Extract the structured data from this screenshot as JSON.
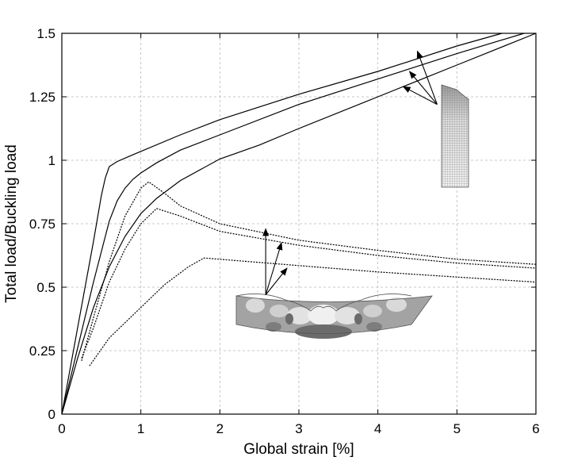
{
  "chart_data": {
    "type": "line",
    "xlabel": "Global strain [%]",
    "ylabel": "Total load/Buckling load",
    "xlim": [
      0,
      6
    ],
    "ylim": [
      0,
      1.5
    ],
    "xticks": [
      0,
      1,
      2,
      3,
      4,
      5,
      6
    ],
    "yticks": [
      0,
      0.25,
      0.5,
      0.75,
      1,
      1.25,
      1.5
    ],
    "ytick_labels": [
      "0",
      "0.25",
      "0.5",
      "0.75",
      "1",
      "1.25",
      "1.5"
    ],
    "grid": true,
    "series": [
      {
        "style": "solid",
        "x": [
          0,
          0.2,
          0.4,
          0.5,
          0.55,
          0.6,
          0.7,
          0.85,
          1.0,
          1.5,
          2.0,
          3.0,
          4.0,
          5.0,
          5.57
        ],
        "y": [
          0,
          0.34,
          0.68,
          0.86,
          0.93,
          0.975,
          0.995,
          1.015,
          1.035,
          1.1,
          1.16,
          1.26,
          1.35,
          1.45,
          1.5
        ]
      },
      {
        "style": "solid",
        "x": [
          0,
          0.2,
          0.4,
          0.6,
          0.7,
          0.8,
          0.9,
          1.0,
          1.2,
          1.5,
          2.0,
          3.0,
          4.0,
          5.0,
          5.85
        ],
        "y": [
          0,
          0.26,
          0.52,
          0.76,
          0.84,
          0.89,
          0.925,
          0.95,
          0.99,
          1.04,
          1.1,
          1.22,
          1.32,
          1.42,
          1.5
        ]
      },
      {
        "style": "solid",
        "x": [
          0,
          0.2,
          0.4,
          0.6,
          0.8,
          1.0,
          1.2,
          1.5,
          2.0,
          2.5,
          3.0,
          4.0,
          5.0,
          6.0
        ],
        "y": [
          0,
          0.22,
          0.42,
          0.58,
          0.7,
          0.79,
          0.85,
          0.92,
          1.005,
          1.06,
          1.125,
          1.25,
          1.375,
          1.5
        ]
      },
      {
        "style": "dotted",
        "x": [
          0.25,
          0.4,
          0.6,
          0.8,
          1.0,
          1.1,
          1.3,
          1.5,
          2.0,
          3.0,
          4.0,
          5.0,
          6.0
        ],
        "y": [
          0.21,
          0.38,
          0.6,
          0.78,
          0.89,
          0.915,
          0.87,
          0.82,
          0.75,
          0.685,
          0.645,
          0.61,
          0.59
        ]
      },
      {
        "style": "dotted",
        "x": [
          0.25,
          0.4,
          0.6,
          0.8,
          1.0,
          1.2,
          1.5,
          2.0,
          3.0,
          4.0,
          5.0,
          6.0
        ],
        "y": [
          0.22,
          0.34,
          0.52,
          0.65,
          0.75,
          0.81,
          0.78,
          0.72,
          0.665,
          0.625,
          0.595,
          0.575
        ]
      },
      {
        "style": "dotted",
        "x": [
          0.35,
          0.6,
          0.8,
          1.0,
          1.3,
          1.6,
          1.8,
          2.0,
          3.0,
          4.0,
          5.0,
          6.0
        ],
        "y": [
          0.19,
          0.3,
          0.36,
          0.42,
          0.51,
          0.58,
          0.615,
          0.61,
          0.585,
          0.56,
          0.54,
          0.52
        ]
      }
    ],
    "annotations": [
      {
        "from": [
          4.75,
          1.22
        ],
        "to": [
          4.32,
          1.29
        ]
      },
      {
        "from": [
          4.75,
          1.22
        ],
        "to": [
          4.4,
          1.35
        ]
      },
      {
        "from": [
          4.75,
          1.22
        ],
        "to": [
          4.5,
          1.43
        ]
      },
      {
        "from": [
          2.58,
          0.47
        ],
        "to": [
          2.58,
          0.73
        ]
      },
      {
        "from": [
          2.58,
          0.47
        ],
        "to": [
          2.78,
          0.675
        ]
      },
      {
        "from": [
          2.58,
          0.47
        ],
        "to": [
          2.85,
          0.575
        ]
      }
    ]
  },
  "colors": {
    "line": "#000000",
    "grid": "#b8b8b8",
    "mesh_light": "#e6e6e6",
    "mesh_dark": "#8a8a8a",
    "panel_base": "#a3a3a3",
    "panel_light": "#d9d9d9",
    "panel_dark": "#6b6b6b"
  },
  "icons": {
    "upper_inset": "fem-mesh-column-icon",
    "lower_inset": "buckled-panel-contour-icon"
  }
}
